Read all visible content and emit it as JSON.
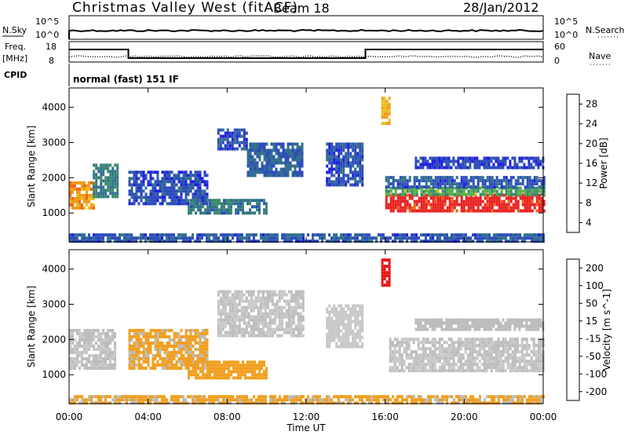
{
  "header": {
    "title": "Christmas Valley West (fitACF)",
    "beam": "Beam 18",
    "date": "28/Jan/2012"
  },
  "top_panels": {
    "noise_left_label": "N.Sky",
    "noise_right_label": "N.Search",
    "noise_ticks": [
      "10^5",
      "10^0"
    ],
    "freq_left_label": "Freq.",
    "freq_left_unit": "[MHz]",
    "freq_ticks": [
      "18",
      "8"
    ],
    "nave_label": "Nave",
    "nave_ticks": [
      "60",
      "0"
    ],
    "cpid_label": "CPID",
    "cpid_text": "normal (fast) 151 IF"
  },
  "colors": {
    "power_scale": [
      "#1f1fe0",
      "#2d4dbb",
      "#33708f",
      "#3a8a6a",
      "#56b04a",
      "#e6c21e",
      "#f39a18",
      "#f0641a",
      "#e82020"
    ],
    "velocity_scale": [
      "#1f2fd6",
      "#2e63a8",
      "#3c8a4a",
      "#6dc23a",
      "#c8c8c8",
      "#bcbcbc",
      "#f0a020",
      "#f07818",
      "#ef4a14",
      "#e81212"
    ]
  },
  "chart_data": [
    {
      "type": "heatmap",
      "panel": "power",
      "xlabel": "",
      "ylabel": "Slant Range [km]",
      "x_ticks": [
        "00:00",
        "04:00",
        "08:00",
        "12:00",
        "16:00",
        "20:00",
        "00:00"
      ],
      "y_ticks": [
        "1000",
        "2000",
        "3000",
        "4000"
      ],
      "xlim": [
        0,
        24
      ],
      "ylim": [
        180,
        4550
      ],
      "colorbar_label": "Power [dB]",
      "colorbar_ticks": [
        "28",
        "24",
        "20",
        "16",
        "12",
        "8",
        "4"
      ],
      "colorbar_range": [
        0,
        30
      ],
      "regions": [
        {
          "t": [
            0.0,
            1.2
          ],
          "r": [
            1150,
            1900
          ],
          "level": 22
        },
        {
          "t": [
            1.2,
            2.4
          ],
          "r": [
            1500,
            2400
          ],
          "level": 10
        },
        {
          "t": [
            3.0,
            7.0
          ],
          "r": [
            1300,
            2200
          ],
          "level": 5
        },
        {
          "t": [
            6.0,
            10.0
          ],
          "r": [
            1000,
            1400
          ],
          "level": 9
        },
        {
          "t": [
            7.5,
            9.0
          ],
          "r": [
            2800,
            3400
          ],
          "level": 5
        },
        {
          "t": [
            9.0,
            11.8
          ],
          "r": [
            2100,
            3000
          ],
          "level": 7
        },
        {
          "t": [
            13.0,
            14.8
          ],
          "r": [
            1800,
            3000
          ],
          "level": 5
        },
        {
          "t": [
            15.8,
            16.2
          ],
          "r": [
            3500,
            4300
          ],
          "level": 20
        },
        {
          "t": [
            16.0,
            24.0
          ],
          "r": [
            1100,
            1550
          ],
          "level": 29
        },
        {
          "t": [
            16.0,
            24.0
          ],
          "r": [
            1550,
            1750
          ],
          "level": 14
        },
        {
          "t": [
            16.0,
            24.0
          ],
          "r": [
            1750,
            2050
          ],
          "level": 6
        },
        {
          "t": [
            17.5,
            24.0
          ],
          "r": [
            2300,
            2600
          ],
          "level": 4
        },
        {
          "t": [
            0.0,
            24.0
          ],
          "r": [
            200,
            420
          ],
          "level": 6
        }
      ]
    },
    {
      "type": "heatmap",
      "panel": "velocity",
      "xlabel": "Time UT",
      "ylabel": "Slant Range [km]",
      "x_ticks": [
        "00:00",
        "04:00",
        "08:00",
        "12:00",
        "16:00",
        "20:00",
        "00:00"
      ],
      "y_ticks": [
        "1000",
        "2000",
        "3000",
        "4000"
      ],
      "xlim": [
        0,
        24
      ],
      "ylim": [
        180,
        4550
      ],
      "colorbar_label": "Velocity [m s^-1]",
      "colorbar_ticks": [
        "200",
        "100",
        "50",
        "15",
        "-15",
        "-50",
        "-100",
        "-200"
      ],
      "colorbar_range": [
        -250,
        250
      ],
      "regions": [
        {
          "t": [
            0.0,
            2.3
          ],
          "r": [
            1200,
            2300
          ],
          "v": 0
        },
        {
          "t": [
            3.0,
            7.0
          ],
          "r": [
            1200,
            2300
          ],
          "v": -60
        },
        {
          "t": [
            6.0,
            10.0
          ],
          "r": [
            900,
            1400
          ],
          "v": -70
        },
        {
          "t": [
            7.5,
            11.8
          ],
          "r": [
            2100,
            3400
          ],
          "v": 0
        },
        {
          "t": [
            13.0,
            14.8
          ],
          "r": [
            1800,
            3000
          ],
          "v": 30
        },
        {
          "t": [
            15.8,
            16.2
          ],
          "r": [
            3500,
            4300
          ],
          "v": -220
        },
        {
          "t": [
            16.2,
            24.0
          ],
          "r": [
            1100,
            2050
          ],
          "v": 0
        },
        {
          "t": [
            17.5,
            24.0
          ],
          "r": [
            2300,
            2600
          ],
          "v": -20
        },
        {
          "t": [
            0.0,
            24.0
          ],
          "r": [
            200,
            420
          ],
          "v": -60
        }
      ]
    }
  ]
}
